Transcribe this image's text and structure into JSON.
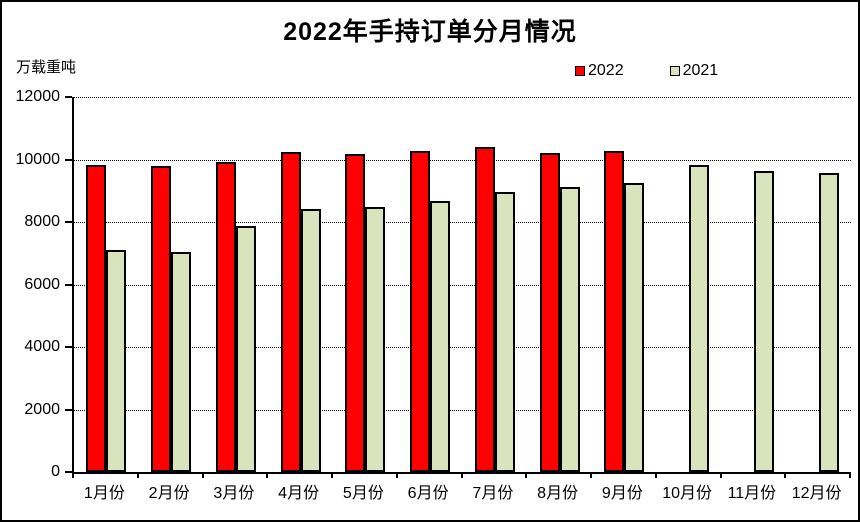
{
  "title": "2022年手持订单分月情况",
  "unit_label": "万载重吨",
  "legend": {
    "items": [
      {
        "label": "2022",
        "color": "#FF0000"
      },
      {
        "label": "2021",
        "color": "#D9E4BC"
      }
    ]
  },
  "chart_data": {
    "type": "bar",
    "title": "2022年手持订单分月情况",
    "ylabel": "万载重吨",
    "xlabel": "",
    "categories": [
      "1月份",
      "2月份",
      "3月份",
      "4月份",
      "5月份",
      "6月份",
      "7月份",
      "8月份",
      "9月份",
      "10月份",
      "11月份",
      "12月份"
    ],
    "series": [
      {
        "name": "2022",
        "color": "#FF0000",
        "values": [
          9840,
          9780,
          9930,
          10250,
          10190,
          10280,
          10390,
          10210,
          10260,
          null,
          null,
          null
        ]
      },
      {
        "name": "2021",
        "color": "#D9E4BC",
        "values": [
          7110,
          7050,
          7860,
          8420,
          8490,
          8680,
          8950,
          9130,
          9260,
          9820,
          9640,
          9580
        ]
      }
    ],
    "ylim": [
      0,
      12000
    ],
    "ytick_interval": 2000,
    "grid": "horizontal dotted",
    "legend_position": "top-right"
  }
}
